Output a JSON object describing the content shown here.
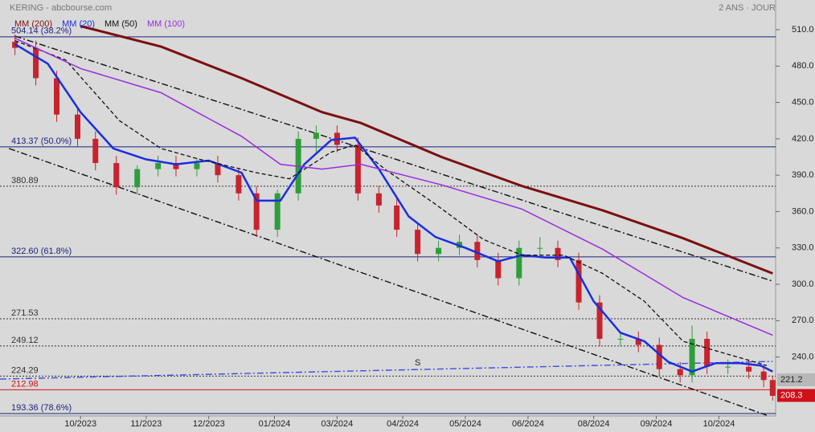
{
  "chart_data": {
    "type": "candlestick",
    "title": "KERING - abcbourse.com",
    "subtitle": "2 ANS · JOUR",
    "xlim": [
      0,
      260
    ],
    "xticks": [
      {
        "value": 27,
        "label": "10/2023"
      },
      {
        "value": 49,
        "label": "11/2023"
      },
      {
        "value": 70,
        "label": "12/2023"
      },
      {
        "value": 92,
        "label": "01/2024"
      },
      {
        "value": 113,
        "label": "03/2024"
      },
      {
        "value": 135,
        "label": "04/2024"
      },
      {
        "value": 156,
        "label": "05/2024"
      },
      {
        "value": 177,
        "label": "06/2024"
      },
      {
        "value": 199,
        "label": "08/2024"
      },
      {
        "value": 220,
        "label": "09/2024"
      },
      {
        "value": 241,
        "label": "10/2024"
      }
    ],
    "ylim": [
      191.4,
      534.5
    ],
    "yticks": [
      {
        "value": 510,
        "label": "510.0"
      },
      {
        "value": 480,
        "label": "480.0"
      },
      {
        "value": 450,
        "label": "450.0"
      },
      {
        "value": 420,
        "label": "420.0"
      },
      {
        "value": 390,
        "label": "390.0"
      },
      {
        "value": 360,
        "label": "360.0"
      },
      {
        "value": 330,
        "label": "330.0"
      },
      {
        "value": 300,
        "label": "300.0"
      },
      {
        "value": 270,
        "label": "270.0"
      },
      {
        "value": 240,
        "label": "240.0"
      }
    ],
    "candles": {
      "up_color": "#2e9e3a",
      "down_color": "#c8232c",
      "x": [
        5,
        12,
        19,
        26,
        32,
        39,
        46,
        53,
        59,
        66,
        73,
        80,
        86,
        93,
        100,
        106,
        113,
        120,
        127,
        133,
        140,
        147,
        154,
        160,
        167,
        174,
        181,
        187,
        194,
        201,
        208,
        214,
        221,
        228,
        232,
        237,
        244,
        251,
        256,
        259
      ],
      "open": [
        500,
        495,
        470,
        440,
        420,
        400,
        380,
        395,
        400,
        395,
        400,
        390,
        375,
        345,
        375,
        420,
        425,
        415,
        375,
        365,
        345,
        325,
        330,
        335,
        320,
        305,
        330,
        330,
        320,
        285,
        255,
        255,
        250,
        230,
        225,
        255,
        232,
        232,
        228,
        221
      ],
      "high": [
        506,
        501,
        476,
        446,
        426,
        406,
        398,
        406,
        406,
        404,
        406,
        396,
        381,
        378,
        426,
        431,
        431,
        421,
        381,
        371,
        351,
        336,
        341,
        341,
        326,
        336,
        339,
        336,
        326,
        291,
        261,
        261,
        256,
        236,
        266,
        261,
        238,
        238,
        234,
        224
      ],
      "low": [
        489,
        464,
        434,
        414,
        394,
        374,
        374,
        389,
        389,
        389,
        384,
        369,
        339,
        339,
        369,
        409,
        409,
        369,
        359,
        339,
        319,
        319,
        324,
        314,
        299,
        299,
        324,
        314,
        279,
        249,
        249,
        244,
        224,
        219,
        219,
        226,
        226,
        222,
        215,
        204
      ],
      "close": [
        495,
        470,
        440,
        420,
        400,
        380,
        395,
        400,
        395,
        400,
        390,
        375,
        345,
        375,
        420,
        425,
        415,
        375,
        365,
        345,
        325,
        330,
        335,
        320,
        305,
        330,
        330,
        320,
        285,
        255,
        255,
        250,
        230,
        225,
        255,
        232,
        232,
        228,
        221,
        208
      ]
    },
    "series": [
      {
        "name": "MM (200)",
        "color": "#7a1010",
        "width": 3,
        "dash": "",
        "x": [
          27,
          54,
          81,
          108,
          121,
          148,
          175,
          202,
          229,
          259
        ],
        "values": [
          513,
          496,
          470,
          442,
          433,
          405,
          381,
          361,
          338,
          309
        ]
      },
      {
        "name": "MM (20)",
        "color": "#1a2ee0",
        "width": 2.5,
        "dash": "",
        "x": [
          5,
          16,
          27,
          38,
          49,
          59,
          70,
          81,
          86,
          94,
          102,
          111,
          119,
          127,
          137,
          146,
          156,
          167,
          175,
          183,
          191,
          199,
          208,
          216,
          224,
          232,
          240,
          248,
          255,
          259
        ],
        "values": [
          498,
          482,
          442,
          412,
          403,
          399,
          402,
          392,
          369,
          369,
          399,
          419,
          421,
          395,
          356,
          339,
          330,
          319,
          324,
          322,
          322,
          286,
          260,
          253,
          236,
          228,
          235,
          235,
          233,
          228
        ]
      },
      {
        "name": "MM (50)",
        "color": "#111111",
        "width": 1.3,
        "dash": "5 3",
        "x": [
          5,
          22,
          40,
          54,
          67,
          86,
          97,
          111,
          119,
          129,
          146,
          162,
          175,
          189,
          202,
          216,
          229,
          243,
          257
        ],
        "values": [
          501,
          485,
          435,
          412,
          403,
          392,
          387,
          409,
          415,
          395,
          366,
          337,
          324,
          324,
          309,
          286,
          253,
          243,
          233
        ]
      },
      {
        "name": "MM (100)",
        "color": "#9a2be0",
        "width": 1.5,
        "dash": "",
        "x": [
          5,
          27,
          54,
          81,
          94,
          108,
          121,
          148,
          175,
          202,
          229,
          259
        ],
        "values": [
          503,
          478,
          458,
          422,
          399,
          395,
          399,
          382,
          362,
          329,
          289,
          258
        ]
      }
    ],
    "trendlines": [
      {
        "color": "#111111",
        "dash": "8 3 2 3",
        "x": [
          5,
          259
        ],
        "values": [
          504.7,
          302.6
        ]
      },
      {
        "color": "#111111",
        "dash": "8 3 2 3",
        "x": [
          3,
          257
        ],
        "values": [
          412,
          192
        ]
      },
      {
        "color": "#3a4fe0",
        "dash": "8 3 2 3",
        "x": [
          0,
          259
        ],
        "values": [
          221.8,
          236.4
        ]
      }
    ],
    "levels": [
      {
        "value": 504.14,
        "label": "504.14  (38.2%)",
        "color": "#1a237e",
        "dash": ""
      },
      {
        "value": 413.37,
        "label": "413.37  (50.0%)",
        "color": "#1a237e",
        "dash": ""
      },
      {
        "value": 380.89,
        "label": "380.89",
        "color": "#333333",
        "dash": "2 2"
      },
      {
        "value": 322.6,
        "label": "322.60  (61.8%)",
        "color": "#1a237e",
        "dash": ""
      },
      {
        "value": 271.53,
        "label": "271.53",
        "color": "#333333",
        "dash": "2 2"
      },
      {
        "value": 249.12,
        "label": "249.12",
        "color": "#333333",
        "dash": "2 2"
      },
      {
        "value": 224.29,
        "label": "224.29",
        "color": "#333333",
        "dash": "2 2"
      },
      {
        "value": 212.98,
        "label": "212.98",
        "color": "#d0101a",
        "dash": ""
      },
      {
        "value": 193.36,
        "label": "193.36  (78.6%)",
        "color": "#1a237e",
        "dash": ""
      }
    ],
    "annotation": {
      "text": "S",
      "x": 140,
      "value": 235
    },
    "price_tags": [
      {
        "value": 221.2,
        "color": "#b8b8b8"
      },
      {
        "value": 208.3,
        "color": "#d0101a"
      }
    ]
  }
}
